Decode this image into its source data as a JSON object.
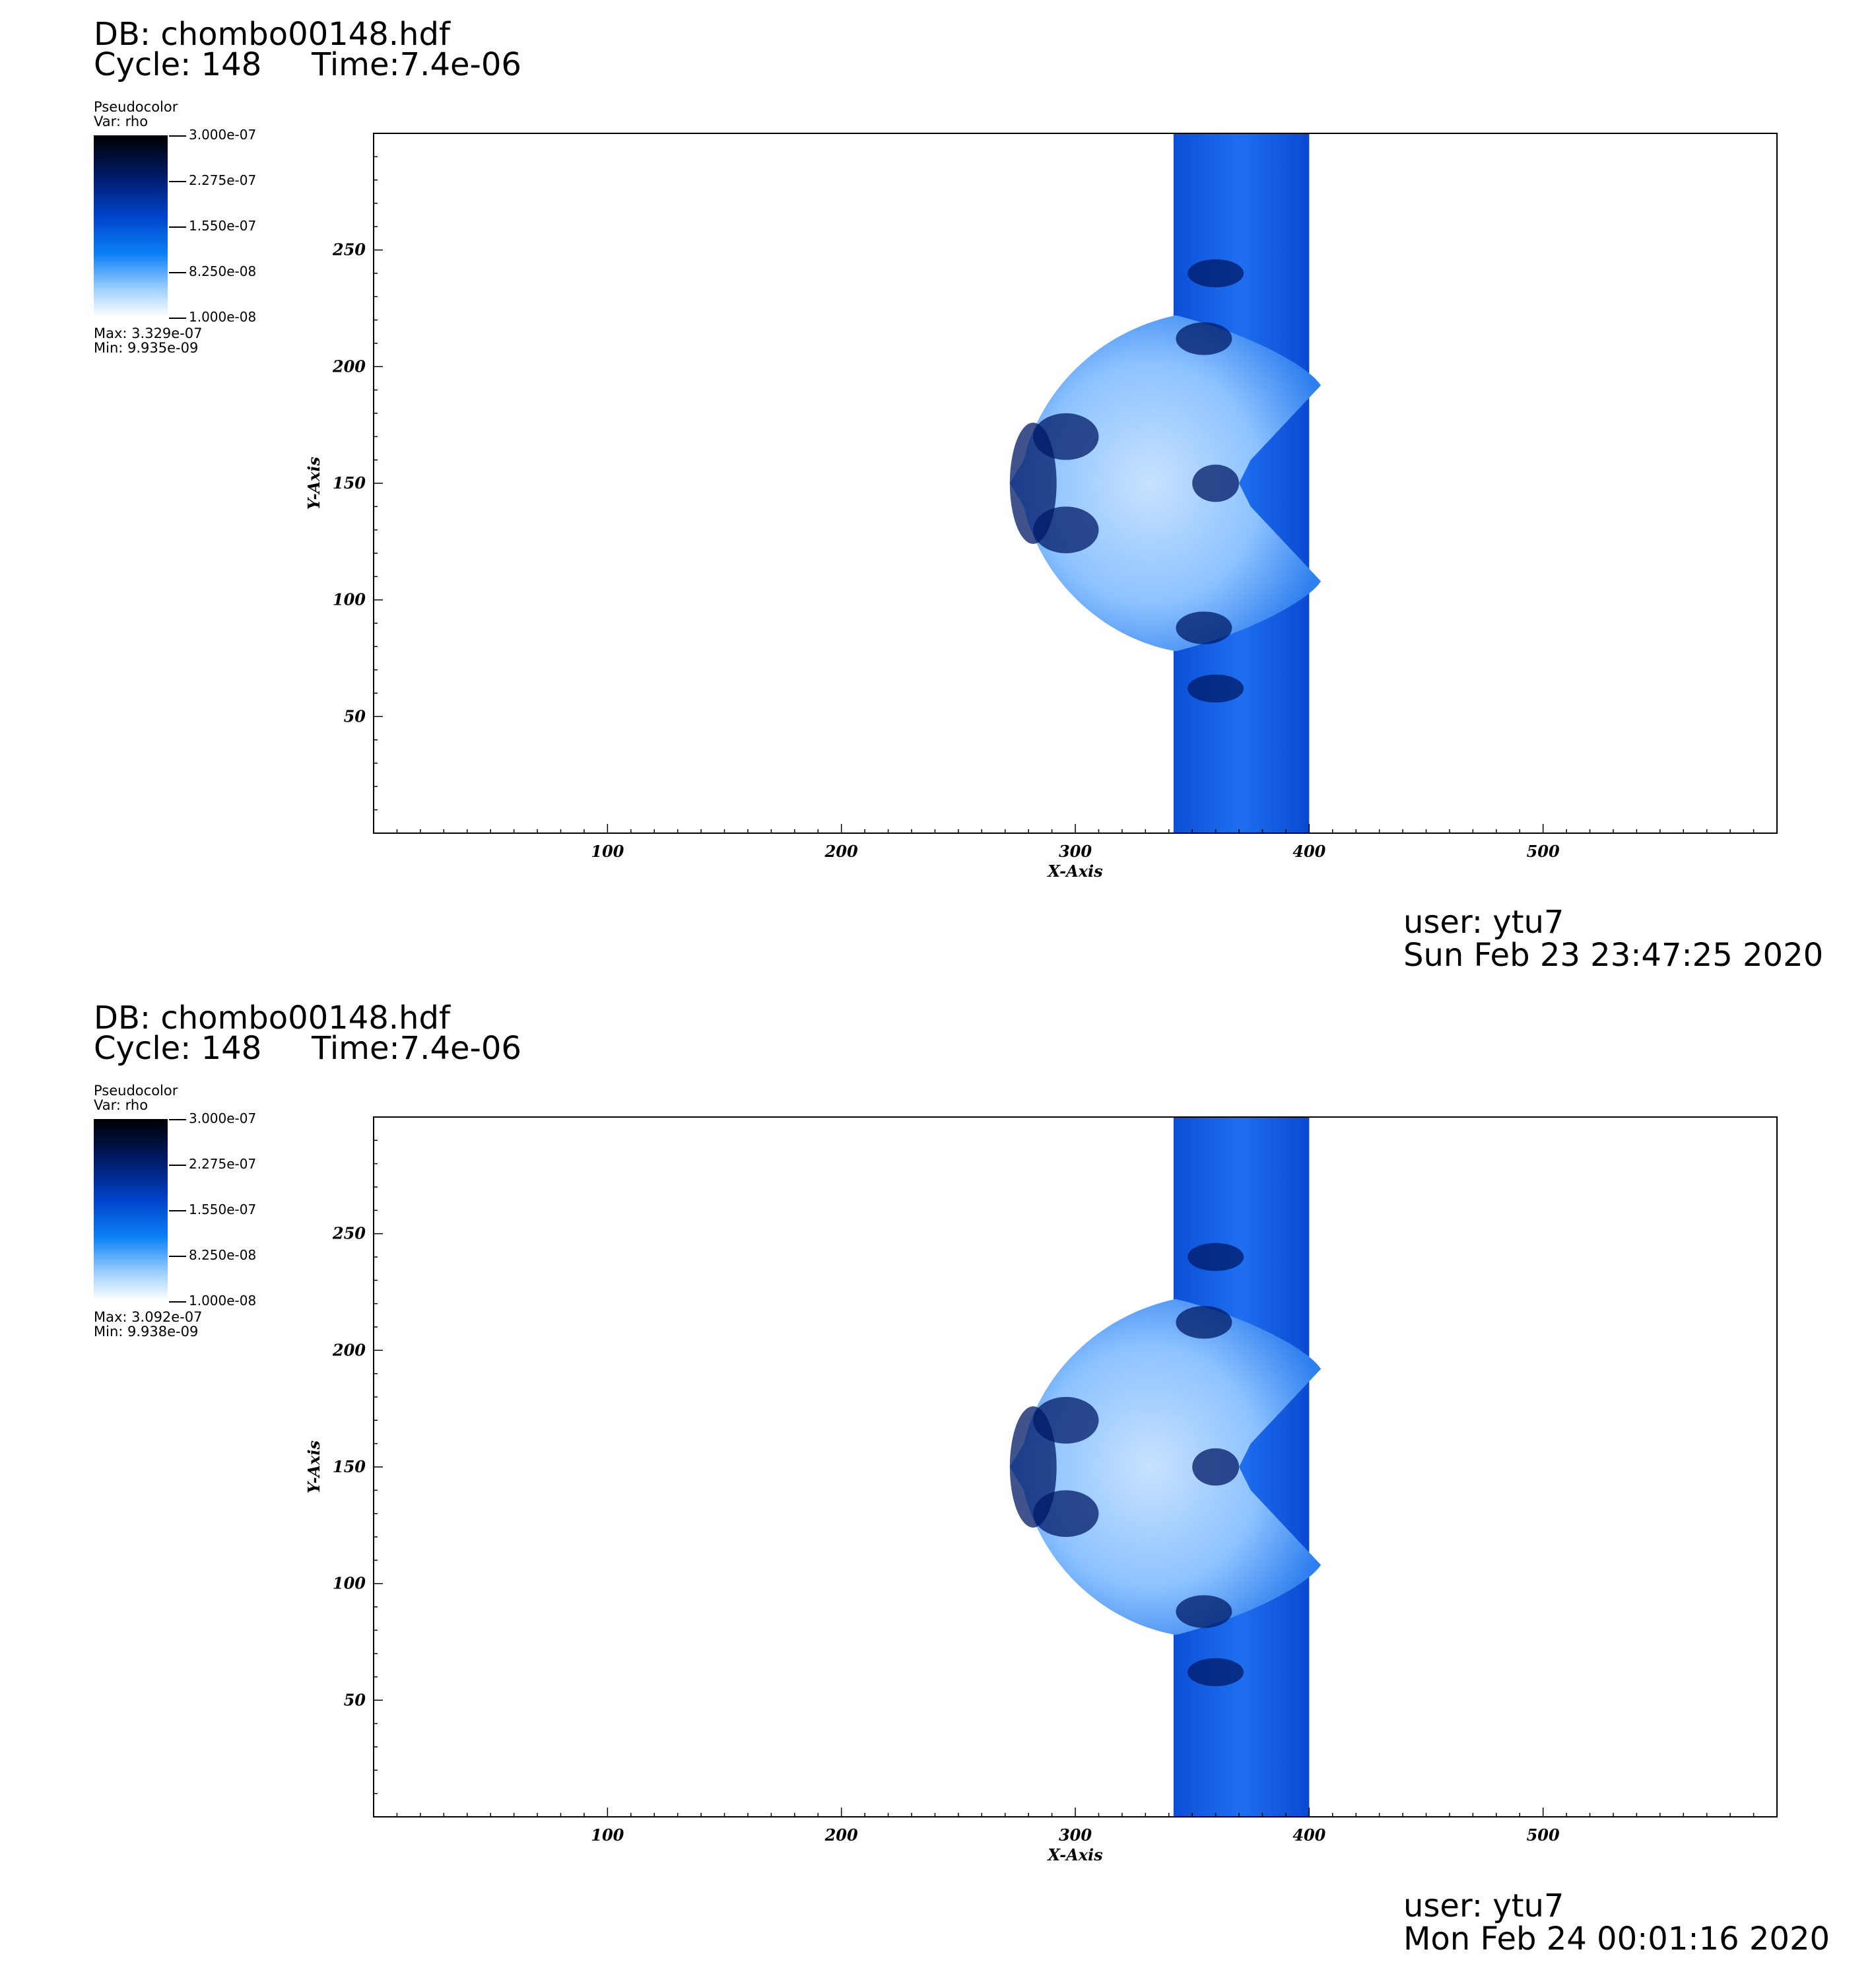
{
  "panels": [
    {
      "db": "DB: chombo00148.hdf",
      "cycle": "Cycle: 148",
      "time": "Time:7.4e-06",
      "plot_type": "Pseudocolor",
      "var": "Var: rho",
      "max": "Max:  3.329e-07",
      "min": "Min:  9.935e-09",
      "user": "user: ytu7",
      "date": "Sun Feb 23 23:47:25 2020"
    },
    {
      "db": "DB: chombo00148.hdf",
      "cycle": "Cycle: 148",
      "time": "Time:7.4e-06",
      "plot_type": "Pseudocolor",
      "var": "Var: rho",
      "max": "Max:  3.092e-07",
      "min": "Min:  9.938e-09",
      "user": "user: ytu7",
      "date": "Mon Feb 24 00:01:16 2020"
    }
  ],
  "chart_data": [
    {
      "type": "heatmap",
      "variable": "rho",
      "xlabel": "X-Axis",
      "ylabel": "Y-Axis",
      "xlim": [
        0,
        600
      ],
      "ylim": [
        0,
        300
      ],
      "xticks": [
        "100",
        "200",
        "300",
        "400",
        "500"
      ],
      "yticks": [
        "50",
        "100",
        "150",
        "200",
        "250"
      ],
      "colorbar_ticks": [
        "3.000e-07",
        "2.275e-07",
        "1.550e-07",
        "8.250e-08",
        "1.000e-08"
      ],
      "colors": {
        "high": "#000000",
        "mid": "#0044cc",
        "low": "#ffffff"
      }
    },
    {
      "type": "heatmap",
      "variable": "rho",
      "xlabel": "X-Axis",
      "ylabel": "Y-Axis",
      "xlim": [
        0,
        600
      ],
      "ylim": [
        0,
        300
      ],
      "xticks": [
        "100",
        "200",
        "300",
        "400",
        "500"
      ],
      "yticks": [
        "50",
        "100",
        "150",
        "200",
        "250"
      ],
      "colorbar_ticks": [
        "3.000e-07",
        "2.275e-07",
        "1.550e-07",
        "8.250e-08",
        "1.000e-08"
      ],
      "colors": {
        "high": "#000000",
        "mid": "#0044cc",
        "low": "#ffffff"
      }
    }
  ]
}
